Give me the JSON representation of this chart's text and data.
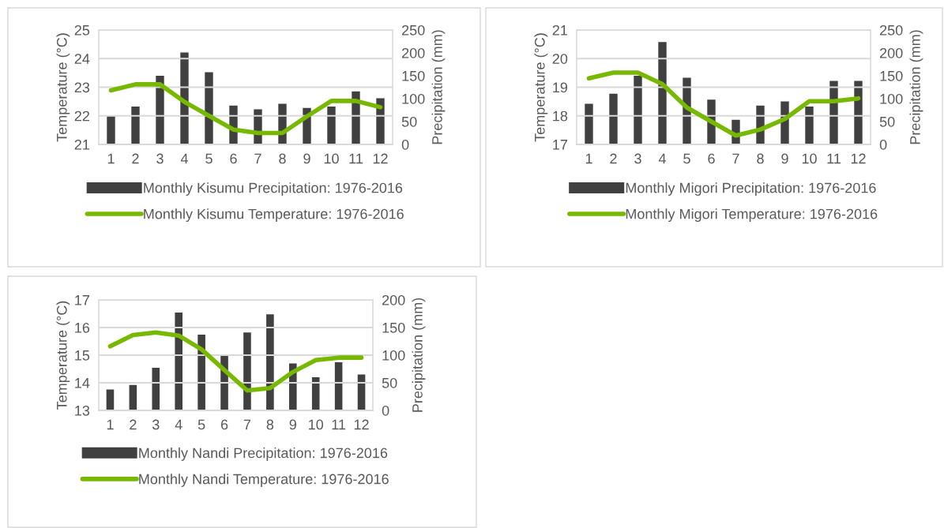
{
  "chart_data": [
    {
      "type": "bar",
      "categories": [
        "1",
        "2",
        "3",
        "4",
        "5",
        "6",
        "7",
        "8",
        "9",
        "10",
        "11",
        "12"
      ],
      "ylabel": "Temperature (°C)",
      "y2label": "Precipitation (mm)",
      "ylim": [
        21,
        25
      ],
      "yticks": [
        21,
        22,
        23,
        24,
        25
      ],
      "y2lim": [
        0,
        250
      ],
      "y2ticks": [
        0,
        50,
        100,
        150,
        200,
        250
      ],
      "grid": "y",
      "legend": "bottom",
      "series": [
        {
          "name": "Monthly Kisumu Precipitation: 1976-2016",
          "axis": "y2",
          "color": "#404040",
          "values": [
            63,
            84,
            151,
            202,
            159,
            86,
            78,
            90,
            81,
            84,
            117,
            102
          ]
        },
        {
          "name": "Monthly Kisumu Temperature: 1976-2016",
          "type": "line",
          "color": "#77b900",
          "values": [
            22.89,
            23.1,
            23.1,
            22.49,
            22.0,
            21.52,
            21.4,
            21.4,
            21.98,
            22.52,
            22.52,
            22.3
          ]
        }
      ]
    },
    {
      "type": "bar",
      "categories": [
        "1",
        "2",
        "3",
        "4",
        "5",
        "6",
        "7",
        "8",
        "9",
        "10",
        "11",
        "12"
      ],
      "ylabel": "Temperature (°C)",
      "y2label": "Precipitation (mm)",
      "ylim": [
        17,
        21
      ],
      "yticks": [
        17,
        18,
        19,
        20,
        21
      ],
      "y2lim": [
        0,
        250
      ],
      "y2ticks": [
        0,
        50,
        100,
        150,
        200,
        250
      ],
      "grid": "y",
      "legend": "bottom",
      "series": [
        {
          "name": "Monthly Migori Precipitation: 1976-2016",
          "axis": "y2",
          "color": "#404040",
          "values": [
            90,
            112,
            151,
            225,
            147,
            99,
            55,
            86,
            95,
            84,
            140,
            140
          ]
        },
        {
          "name": "Monthly Migori Temperature: 1976-2016",
          "type": "line",
          "color": "#77b900",
          "values": [
            19.31,
            19.51,
            19.51,
            19.11,
            18.29,
            17.8,
            17.31,
            17.52,
            17.89,
            18.51,
            18.51,
            18.61
          ]
        }
      ]
    },
    {
      "type": "bar",
      "categories": [
        "1",
        "2",
        "3",
        "4",
        "5",
        "6",
        "7",
        "8",
        "9",
        "10",
        "11",
        "12"
      ],
      "ylabel": "Temperature (°C)",
      "y2label": "Precipitation (mm)",
      "ylim": [
        13,
        17
      ],
      "yticks": [
        13,
        14,
        15,
        16,
        17
      ],
      "y2lim": [
        0,
        200
      ],
      "y2ticks": [
        0,
        50,
        100,
        150,
        200
      ],
      "grid": "y",
      "legend": "bottom",
      "series": [
        {
          "name": "Monthly Nandi Precipitation: 1976-2016",
          "axis": "y2",
          "color": "#404040",
          "values": [
            39,
            47,
            78,
            178,
            138,
            100,
            142,
            175,
            86,
            61,
            88,
            66
          ]
        },
        {
          "name": "Monthly Nandi Temperature: 1976-2016",
          "type": "line",
          "color": "#77b900",
          "values": [
            15.32,
            15.73,
            15.82,
            15.71,
            15.21,
            14.46,
            13.72,
            13.81,
            14.39,
            14.82,
            14.91,
            14.91
          ]
        }
      ]
    }
  ]
}
